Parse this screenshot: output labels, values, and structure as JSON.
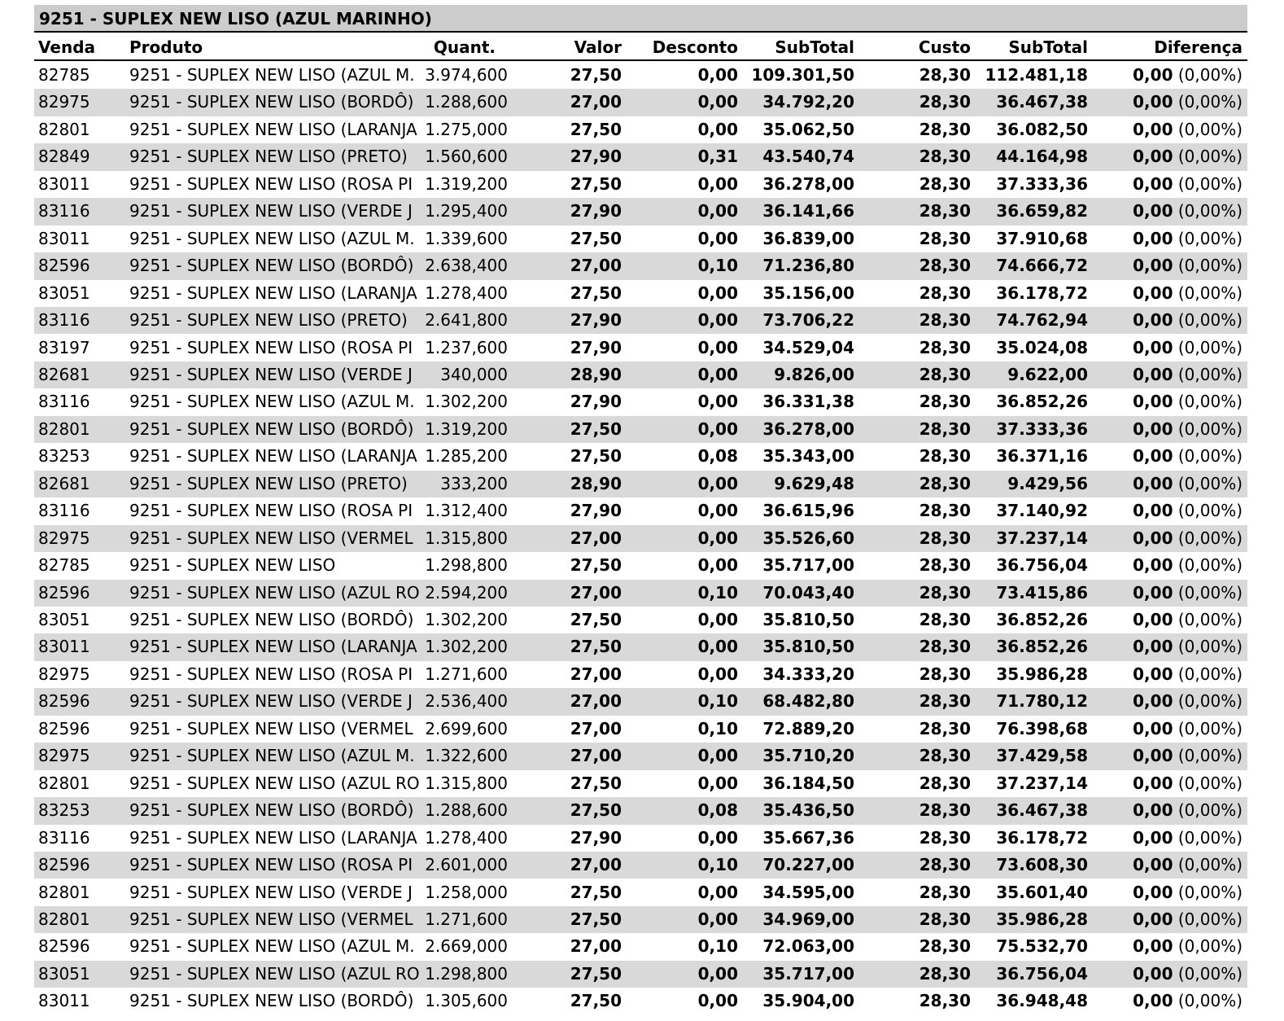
{
  "title": "9251 - SUPLEX NEW LISO (AZUL MARINHO)",
  "headers": {
    "venda": "Venda",
    "produto": "Produto",
    "quant": "Quant.",
    "valor": "Valor",
    "desconto": "Desconto",
    "subtotal": "SubTotal",
    "custo": "Custo",
    "subtotal2": "SubTotal",
    "diferenca": "Diferença"
  },
  "rows": [
    [
      "82785",
      "9251 - SUPLEX NEW LISO (AZUL M.",
      "3.974,600",
      "27,50",
      "0,00",
      "109.301,50",
      "28,30",
      "112.481,18",
      "0,00",
      "(0,00%)"
    ],
    [
      "82975",
      "9251 - SUPLEX NEW LISO (BORDÔ)",
      "1.288,600",
      "27,00",
      "0,00",
      "34.792,20",
      "28,30",
      "36.467,38",
      "0,00",
      "(0,00%)"
    ],
    [
      "82801",
      "9251 - SUPLEX NEW LISO (LARANJA",
      "1.275,000",
      "27,50",
      "0,00",
      "35.062,50",
      "28,30",
      "36.082,50",
      "0,00",
      "(0,00%)"
    ],
    [
      "82849",
      "9251 - SUPLEX NEW LISO (PRETO)",
      "1.560,600",
      "27,90",
      "0,31",
      "43.540,74",
      "28,30",
      "44.164,98",
      "0,00",
      "(0,00%)"
    ],
    [
      "83011",
      "9251 - SUPLEX NEW LISO (ROSA PI",
      "1.319,200",
      "27,50",
      "0,00",
      "36.278,00",
      "28,30",
      "37.333,36",
      "0,00",
      "(0,00%)"
    ],
    [
      "83116",
      "9251 - SUPLEX NEW LISO (VERDE J",
      "1.295,400",
      "27,90",
      "0,00",
      "36.141,66",
      "28,30",
      "36.659,82",
      "0,00",
      "(0,00%)"
    ],
    [
      "83011",
      "9251 - SUPLEX NEW LISO (AZUL M.",
      "1.339,600",
      "27,50",
      "0,00",
      "36.839,00",
      "28,30",
      "37.910,68",
      "0,00",
      "(0,00%)"
    ],
    [
      "82596",
      "9251 - SUPLEX NEW LISO (BORDÔ)",
      "2.638,400",
      "27,00",
      "0,10",
      "71.236,80",
      "28,30",
      "74.666,72",
      "0,00",
      "(0,00%)"
    ],
    [
      "83051",
      "9251 - SUPLEX NEW LISO (LARANJA",
      "1.278,400",
      "27,50",
      "0,00",
      "35.156,00",
      "28,30",
      "36.178,72",
      "0,00",
      "(0,00%)"
    ],
    [
      "83116",
      "9251 - SUPLEX NEW LISO (PRETO)",
      "2.641,800",
      "27,90",
      "0,00",
      "73.706,22",
      "28,30",
      "74.762,94",
      "0,00",
      "(0,00%)"
    ],
    [
      "83197",
      "9251 - SUPLEX NEW LISO (ROSA PI",
      "1.237,600",
      "27,90",
      "0,00",
      "34.529,04",
      "28,30",
      "35.024,08",
      "0,00",
      "(0,00%)"
    ],
    [
      "82681",
      "9251 - SUPLEX NEW LISO (VERDE J",
      "340,000",
      "28,90",
      "0,00",
      "9.826,00",
      "28,30",
      "9.622,00",
      "0,00",
      "(0,00%)"
    ],
    [
      "83116",
      "9251 - SUPLEX NEW LISO (AZUL M.",
      "1.302,200",
      "27,90",
      "0,00",
      "36.331,38",
      "28,30",
      "36.852,26",
      "0,00",
      "(0,00%)"
    ],
    [
      "82801",
      "9251 - SUPLEX NEW LISO (BORDÔ)",
      "1.319,200",
      "27,50",
      "0,00",
      "36.278,00",
      "28,30",
      "37.333,36",
      "0,00",
      "(0,00%)"
    ],
    [
      "83253",
      "9251 - SUPLEX NEW LISO (LARANJA",
      "1.285,200",
      "27,50",
      "0,08",
      "35.343,00",
      "28,30",
      "36.371,16",
      "0,00",
      "(0,00%)"
    ],
    [
      "82681",
      "9251 - SUPLEX NEW LISO (PRETO)",
      "333,200",
      "28,90",
      "0,00",
      "9.629,48",
      "28,30",
      "9.429,56",
      "0,00",
      "(0,00%)"
    ],
    [
      "83116",
      "9251 - SUPLEX NEW LISO (ROSA PI",
      "1.312,400",
      "27,90",
      "0,00",
      "36.615,96",
      "28,30",
      "37.140,92",
      "0,00",
      "(0,00%)"
    ],
    [
      "82975",
      "9251 - SUPLEX NEW LISO (VERMEL",
      "1.315,800",
      "27,00",
      "0,00",
      "35.526,60",
      "28,30",
      "37.237,14",
      "0,00",
      "(0,00%)"
    ],
    [
      "82785",
      "9251 - SUPLEX NEW LISO",
      "1.298,800",
      "27,50",
      "0,00",
      "35.717,00",
      "28,30",
      "36.756,04",
      "0,00",
      "(0,00%)"
    ],
    [
      "82596",
      "9251 - SUPLEX NEW LISO (AZUL RO",
      "2.594,200",
      "27,00",
      "0,10",
      "70.043,40",
      "28,30",
      "73.415,86",
      "0,00",
      "(0,00%)"
    ],
    [
      "83051",
      "9251 - SUPLEX NEW LISO (BORDÔ)",
      "1.302,200",
      "27,50",
      "0,00",
      "35.810,50",
      "28,30",
      "36.852,26",
      "0,00",
      "(0,00%)"
    ],
    [
      "83011",
      "9251 - SUPLEX NEW LISO (LARANJA",
      "1.302,200",
      "27,50",
      "0,00",
      "35.810,50",
      "28,30",
      "36.852,26",
      "0,00",
      "(0,00%)"
    ],
    [
      "82975",
      "9251 - SUPLEX NEW LISO (ROSA PI",
      "1.271,600",
      "27,00",
      "0,00",
      "34.333,20",
      "28,30",
      "35.986,28",
      "0,00",
      "(0,00%)"
    ],
    [
      "82596",
      "9251 - SUPLEX NEW LISO (VERDE J",
      "2.536,400",
      "27,00",
      "0,10",
      "68.482,80",
      "28,30",
      "71.780,12",
      "0,00",
      "(0,00%)"
    ],
    [
      "82596",
      "9251 - SUPLEX NEW LISO (VERMEL",
      "2.699,600",
      "27,00",
      "0,10",
      "72.889,20",
      "28,30",
      "76.398,68",
      "0,00",
      "(0,00%)"
    ],
    [
      "82975",
      "9251 - SUPLEX NEW LISO (AZUL M.",
      "1.322,600",
      "27,00",
      "0,00",
      "35.710,20",
      "28,30",
      "37.429,58",
      "0,00",
      "(0,00%)"
    ],
    [
      "82801",
      "9251 - SUPLEX NEW LISO (AZUL RO",
      "1.315,800",
      "27,50",
      "0,00",
      "36.184,50",
      "28,30",
      "37.237,14",
      "0,00",
      "(0,00%)"
    ],
    [
      "83253",
      "9251 - SUPLEX NEW LISO (BORDÔ)",
      "1.288,600",
      "27,50",
      "0,08",
      "35.436,50",
      "28,30",
      "36.467,38",
      "0,00",
      "(0,00%)"
    ],
    [
      "83116",
      "9251 - SUPLEX NEW LISO (LARANJA",
      "1.278,400",
      "27,90",
      "0,00",
      "35.667,36",
      "28,30",
      "36.178,72",
      "0,00",
      "(0,00%)"
    ],
    [
      "82596",
      "9251 - SUPLEX NEW LISO (ROSA PI",
      "2.601,000",
      "27,00",
      "0,10",
      "70.227,00",
      "28,30",
      "73.608,30",
      "0,00",
      "(0,00%)"
    ],
    [
      "82801",
      "9251 - SUPLEX NEW LISO (VERDE J",
      "1.258,000",
      "27,50",
      "0,00",
      "34.595,00",
      "28,30",
      "35.601,40",
      "0,00",
      "(0,00%)"
    ],
    [
      "82801",
      "9251 - SUPLEX NEW LISO (VERMEL",
      "1.271,600",
      "27,50",
      "0,00",
      "34.969,00",
      "28,30",
      "35.986,28",
      "0,00",
      "(0,00%)"
    ],
    [
      "82596",
      "9251 - SUPLEX NEW LISO (AZUL M.",
      "2.669,000",
      "27,00",
      "0,10",
      "72.063,00",
      "28,30",
      "75.532,70",
      "0,00",
      "(0,00%)"
    ],
    [
      "83051",
      "9251 - SUPLEX NEW LISO (AZUL RO",
      "1.298,800",
      "27,50",
      "0,00",
      "35.717,00",
      "28,30",
      "36.756,04",
      "0,00",
      "(0,00%)"
    ],
    [
      "83011",
      "9251 - SUPLEX NEW LISO (BORDÔ)",
      "1.305,600",
      "27,50",
      "0,00",
      "35.904,00",
      "28,30",
      "36.948,48",
      "0,00",
      "(0,00%)"
    ]
  ]
}
